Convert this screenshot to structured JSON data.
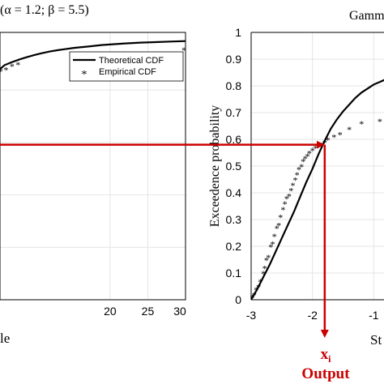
{
  "figure": {
    "left_panel_title": "(α = 1.2; β = 5.5)",
    "right_panel_title": "Gamm",
    "colors": {
      "axis": "#000000",
      "grid": "#e4e4e4",
      "arrow": "#cc0000",
      "curve": "#000000"
    }
  },
  "chart_data": [
    {
      "type": "line",
      "panel": "left",
      "xlabel": "le",
      "ylabel": "",
      "xlim": [
        5.4,
        30
      ],
      "ylim": [
        0,
        1.02
      ],
      "x_ticks": [
        20,
        25,
        30
      ],
      "x_tick_labels": [
        "20",
        "25",
        "30"
      ],
      "grid": true,
      "legend": {
        "placement": "top-right",
        "entries": [
          "Theoretical CDF",
          "Empirical CDF"
        ]
      },
      "series": [
        {
          "name": "Theoretical CDF",
          "style": "solid-line",
          "x": [
            5.4,
            6,
            7,
            8,
            9,
            10,
            11,
            12,
            13,
            14,
            15,
            16,
            17,
            18,
            19,
            20,
            22,
            24,
            26,
            28,
            30
          ],
          "y": [
            0.88,
            0.895,
            0.907,
            0.917,
            0.926,
            0.934,
            0.941,
            0.947,
            0.952,
            0.956,
            0.96,
            0.963,
            0.966,
            0.969,
            0.972,
            0.974,
            0.978,
            0.981,
            0.983,
            0.985,
            0.987
          ]
        },
        {
          "name": "Empirical CDF",
          "style": "asterisk-markers",
          "x": [
            5.5,
            6.2,
            7.0,
            7.8,
            21.8,
            29.8
          ],
          "y": [
            0.875,
            0.88,
            0.893,
            0.9,
            0.94,
            0.955
          ]
        }
      ]
    },
    {
      "type": "line",
      "panel": "right",
      "xlabel": "St",
      "ylabel": "Exceedence probability",
      "xlim": [
        -3,
        -0.45
      ],
      "ylim": [
        0,
        1
      ],
      "x_ticks": [
        -3,
        -2,
        -1
      ],
      "x_tick_labels": [
        "-3",
        "-2",
        "-1"
      ],
      "y_ticks": [
        0,
        0.1,
        0.2,
        0.3,
        0.4,
        0.5,
        0.6,
        0.7,
        0.8,
        0.9,
        1
      ],
      "y_tick_labels": [
        "0",
        "0.1",
        "0.2",
        "0.3",
        "0.4",
        "0.5",
        "0.6",
        "0.7",
        "0.8",
        "0.9",
        "1"
      ],
      "grid": true,
      "series": [
        {
          "name": "Theoretical CDF",
          "style": "solid-line",
          "x": [
            -3.0,
            -2.9,
            -2.8,
            -2.7,
            -2.6,
            -2.5,
            -2.4,
            -2.3,
            -2.2,
            -2.1,
            -2.0,
            -1.9,
            -1.8,
            -1.7,
            -1.6,
            -1.5,
            -1.4,
            -1.3,
            -1.2,
            -1.1,
            -1.0,
            -0.9,
            -0.8,
            -0.7,
            -0.6,
            -0.5
          ],
          "y": [
            0.0,
            0.04,
            0.085,
            0.13,
            0.18,
            0.23,
            0.28,
            0.33,
            0.385,
            0.44,
            0.49,
            0.545,
            0.595,
            0.64,
            0.675,
            0.705,
            0.73,
            0.755,
            0.775,
            0.79,
            0.805,
            0.815,
            0.825,
            0.835,
            0.845,
            0.85
          ]
        },
        {
          "name": "Empirical CDF",
          "style": "asterisk-markers",
          "x": [
            -2.98,
            -2.95,
            -2.92,
            -2.88,
            -2.85,
            -2.8,
            -2.78,
            -2.75,
            -2.72,
            -2.68,
            -2.65,
            -2.62,
            -2.58,
            -2.55,
            -2.52,
            -2.48,
            -2.45,
            -2.42,
            -2.38,
            -2.35,
            -2.32,
            -2.28,
            -2.25,
            -2.22,
            -2.18,
            -2.15,
            -2.12,
            -2.08,
            -2.05,
            -2.0,
            -1.95,
            -1.9,
            -1.85,
            -1.8,
            -1.75,
            -1.65,
            -1.55,
            -1.4,
            -1.2,
            -0.9,
            -0.7
          ],
          "y": [
            0.01,
            0.02,
            0.04,
            0.05,
            0.07,
            0.1,
            0.12,
            0.15,
            0.16,
            0.2,
            0.21,
            0.24,
            0.27,
            0.28,
            0.31,
            0.34,
            0.36,
            0.38,
            0.39,
            0.41,
            0.43,
            0.45,
            0.47,
            0.49,
            0.5,
            0.52,
            0.53,
            0.54,
            0.55,
            0.56,
            0.57,
            0.575,
            0.58,
            0.59,
            0.6,
            0.61,
            0.62,
            0.64,
            0.66,
            0.67,
            0.68
          ]
        }
      ]
    }
  ],
  "annotations": {
    "probability_value": 0.58,
    "input_x_value": -1.8,
    "xi_label": "x",
    "xi_subscript": "i",
    "output_label": "Output"
  }
}
